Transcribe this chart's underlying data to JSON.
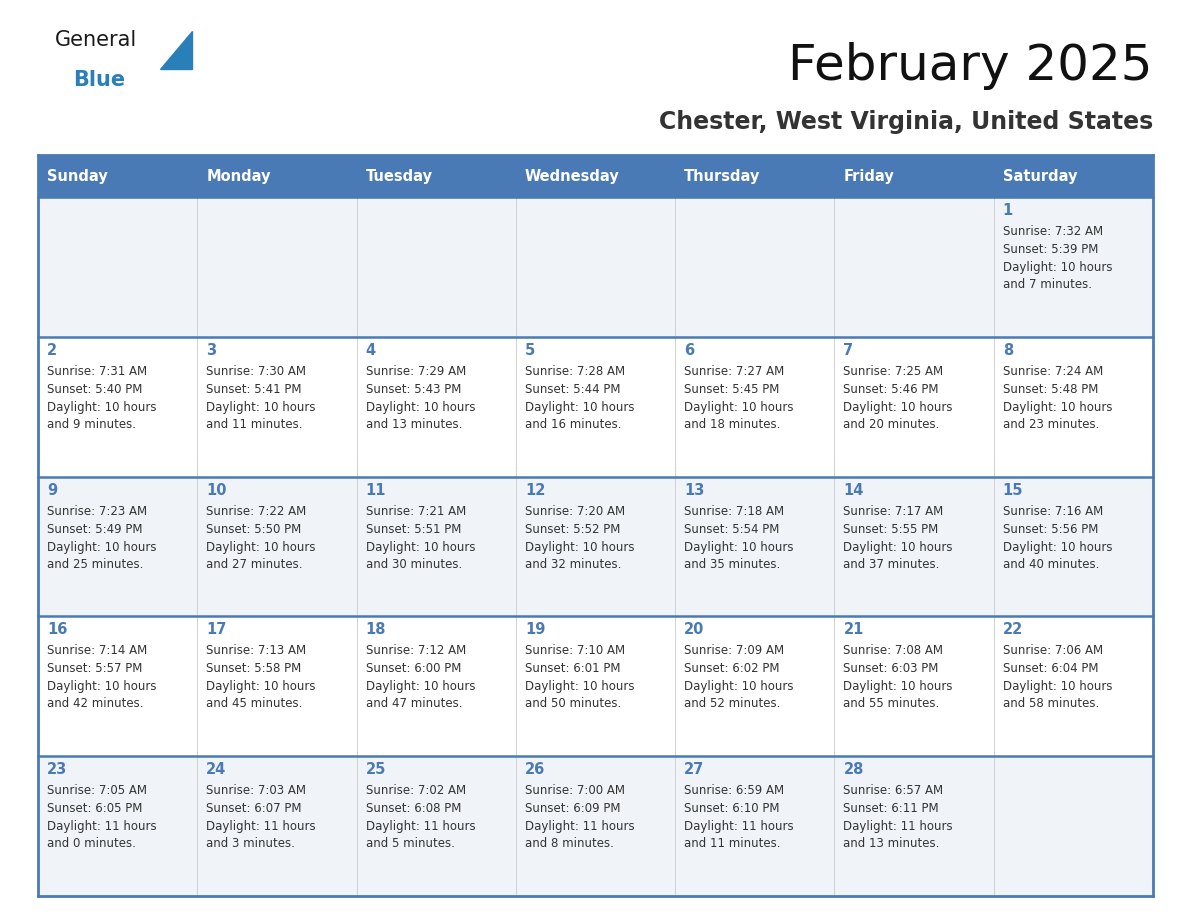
{
  "title": "February 2025",
  "subtitle": "Chester, West Virginia, United States",
  "header_bg": "#4a7ab5",
  "header_text_color": "#ffffff",
  "weekdays": [
    "Sunday",
    "Monday",
    "Tuesday",
    "Wednesday",
    "Thursday",
    "Friday",
    "Saturday"
  ],
  "odd_row_bg": "#f0f4f8",
  "even_row_bg": "#ffffff",
  "border_color": "#4a7ab5",
  "day_number_color": "#4a7ab5",
  "text_color": "#333333",
  "calendar": [
    [
      null,
      null,
      null,
      null,
      null,
      null,
      {
        "day": 1,
        "sunrise": "7:32 AM",
        "sunset": "5:39 PM",
        "daylight": "10 hours\nand 7 minutes."
      }
    ],
    [
      {
        "day": 2,
        "sunrise": "7:31 AM",
        "sunset": "5:40 PM",
        "daylight": "10 hours\nand 9 minutes."
      },
      {
        "day": 3,
        "sunrise": "7:30 AM",
        "sunset": "5:41 PM",
        "daylight": "10 hours\nand 11 minutes."
      },
      {
        "day": 4,
        "sunrise": "7:29 AM",
        "sunset": "5:43 PM",
        "daylight": "10 hours\nand 13 minutes."
      },
      {
        "day": 5,
        "sunrise": "7:28 AM",
        "sunset": "5:44 PM",
        "daylight": "10 hours\nand 16 minutes."
      },
      {
        "day": 6,
        "sunrise": "7:27 AM",
        "sunset": "5:45 PM",
        "daylight": "10 hours\nand 18 minutes."
      },
      {
        "day": 7,
        "sunrise": "7:25 AM",
        "sunset": "5:46 PM",
        "daylight": "10 hours\nand 20 minutes."
      },
      {
        "day": 8,
        "sunrise": "7:24 AM",
        "sunset": "5:48 PM",
        "daylight": "10 hours\nand 23 minutes."
      }
    ],
    [
      {
        "day": 9,
        "sunrise": "7:23 AM",
        "sunset": "5:49 PM",
        "daylight": "10 hours\nand 25 minutes."
      },
      {
        "day": 10,
        "sunrise": "7:22 AM",
        "sunset": "5:50 PM",
        "daylight": "10 hours\nand 27 minutes."
      },
      {
        "day": 11,
        "sunrise": "7:21 AM",
        "sunset": "5:51 PM",
        "daylight": "10 hours\nand 30 minutes."
      },
      {
        "day": 12,
        "sunrise": "7:20 AM",
        "sunset": "5:52 PM",
        "daylight": "10 hours\nand 32 minutes."
      },
      {
        "day": 13,
        "sunrise": "7:18 AM",
        "sunset": "5:54 PM",
        "daylight": "10 hours\nand 35 minutes."
      },
      {
        "day": 14,
        "sunrise": "7:17 AM",
        "sunset": "5:55 PM",
        "daylight": "10 hours\nand 37 minutes."
      },
      {
        "day": 15,
        "sunrise": "7:16 AM",
        "sunset": "5:56 PM",
        "daylight": "10 hours\nand 40 minutes."
      }
    ],
    [
      {
        "day": 16,
        "sunrise": "7:14 AM",
        "sunset": "5:57 PM",
        "daylight": "10 hours\nand 42 minutes."
      },
      {
        "day": 17,
        "sunrise": "7:13 AM",
        "sunset": "5:58 PM",
        "daylight": "10 hours\nand 45 minutes."
      },
      {
        "day": 18,
        "sunrise": "7:12 AM",
        "sunset": "6:00 PM",
        "daylight": "10 hours\nand 47 minutes."
      },
      {
        "day": 19,
        "sunrise": "7:10 AM",
        "sunset": "6:01 PM",
        "daylight": "10 hours\nand 50 minutes."
      },
      {
        "day": 20,
        "sunrise": "7:09 AM",
        "sunset": "6:02 PM",
        "daylight": "10 hours\nand 52 minutes."
      },
      {
        "day": 21,
        "sunrise": "7:08 AM",
        "sunset": "6:03 PM",
        "daylight": "10 hours\nand 55 minutes."
      },
      {
        "day": 22,
        "sunrise": "7:06 AM",
        "sunset": "6:04 PM",
        "daylight": "10 hours\nand 58 minutes."
      }
    ],
    [
      {
        "day": 23,
        "sunrise": "7:05 AM",
        "sunset": "6:05 PM",
        "daylight": "11 hours\nand 0 minutes."
      },
      {
        "day": 24,
        "sunrise": "7:03 AM",
        "sunset": "6:07 PM",
        "daylight": "11 hours\nand 3 minutes."
      },
      {
        "day": 25,
        "sunrise": "7:02 AM",
        "sunset": "6:08 PM",
        "daylight": "11 hours\nand 5 minutes."
      },
      {
        "day": 26,
        "sunrise": "7:00 AM",
        "sunset": "6:09 PM",
        "daylight": "11 hours\nand 8 minutes."
      },
      {
        "day": 27,
        "sunrise": "6:59 AM",
        "sunset": "6:10 PM",
        "daylight": "11 hours\nand 11 minutes."
      },
      {
        "day": 28,
        "sunrise": "6:57 AM",
        "sunset": "6:11 PM",
        "daylight": "11 hours\nand 13 minutes."
      },
      null
    ]
  ],
  "logo_color_general": "#1a1a1a",
  "logo_color_blue": "#2980b9",
  "logo_triangle_color": "#2980b9"
}
